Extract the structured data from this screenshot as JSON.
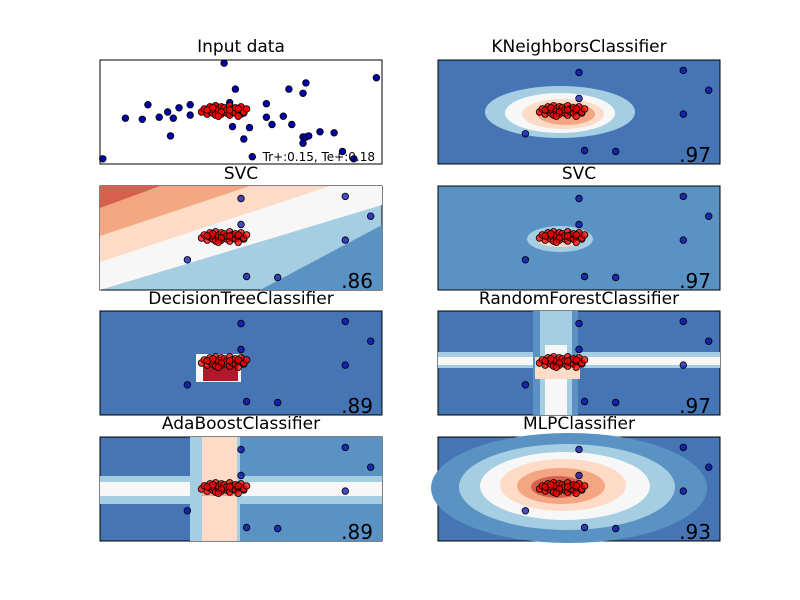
{
  "chart_data": [
    {
      "type": "scatter",
      "title": "Input data",
      "annotation": "Tr+:0.15, Te+:0.18",
      "xlim": [
        0,
        10
      ],
      "ylim": [
        0,
        10
      ],
      "grid": false,
      "series": [
        {
          "color": "#0000aa",
          "points": [
            [
              0.1,
              0.5
            ],
            [
              0.9,
              4.4
            ],
            [
              1.5,
              4.3
            ],
            [
              1.7,
              5.7
            ],
            [
              2.1,
              4.5
            ],
            [
              2.4,
              5.0
            ],
            [
              2.5,
              2.7
            ],
            [
              2.6,
              4.4
            ],
            [
              2.8,
              5.4
            ],
            [
              3.2,
              5.7
            ],
            [
              3.2,
              4.7
            ],
            [
              4.1,
              5.6
            ],
            [
              4.5,
              5.4
            ],
            [
              4.6,
              5.9
            ],
            [
              4.4,
              9.7
            ],
            [
              4.8,
              7.2
            ],
            [
              5.0,
              4.8
            ],
            [
              4.7,
              3.6
            ],
            [
              5.1,
              2.4
            ],
            [
              5.3,
              3.5
            ],
            [
              5.4,
              0.7
            ],
            [
              5.9,
              5.8
            ],
            [
              6.1,
              3.8
            ],
            [
              5.9,
              4.5
            ],
            [
              6.5,
              4.6
            ],
            [
              6.7,
              7.2
            ],
            [
              6.8,
              3.8
            ],
            [
              7.2,
              6.8
            ],
            [
              7.3,
              7.8
            ],
            [
              7.2,
              2.0
            ],
            [
              7.2,
              2.6
            ],
            [
              7.3,
              2.6
            ],
            [
              7.4,
              2.7
            ],
            [
              7.8,
              3.1
            ],
            [
              8.3,
              3.0
            ],
            [
              8.6,
              1.2
            ],
            [
              9.0,
              0.5
            ],
            [
              9.8,
              8.3
            ]
          ]
        },
        {
          "color": "#ff0000",
          "points": [
            [
              3.6,
              5.0
            ],
            [
              3.7,
              5.3
            ],
            [
              3.8,
              4.8
            ],
            [
              3.9,
              5.1
            ],
            [
              3.9,
              5.5
            ],
            [
              4.0,
              4.9
            ],
            [
              4.0,
              5.2
            ],
            [
              4.1,
              5.6
            ],
            [
              4.1,
              4.7
            ],
            [
              4.2,
              5.0
            ],
            [
              4.2,
              5.3
            ],
            [
              4.3,
              5.5
            ],
            [
              4.3,
              4.8
            ],
            [
              4.4,
              5.1
            ],
            [
              4.4,
              5.4
            ],
            [
              4.5,
              4.9
            ],
            [
              4.5,
              5.2
            ],
            [
              4.6,
              5.6
            ],
            [
              4.6,
              4.7
            ],
            [
              4.7,
              5.0
            ],
            [
              4.7,
              5.3
            ],
            [
              4.8,
              4.9
            ],
            [
              4.8,
              5.4
            ],
            [
              4.9,
              5.1
            ],
            [
              4.9,
              4.6
            ],
            [
              5.0,
              5.2
            ],
            [
              5.0,
              5.5
            ],
            [
              5.1,
              4.9
            ],
            [
              5.1,
              5.0
            ],
            [
              5.2,
              5.3
            ],
            [
              3.8,
              5.2
            ],
            [
              4.0,
              5.4
            ],
            [
              4.3,
              5.0
            ],
            [
              4.6,
              5.2
            ],
            [
              4.9,
              5.3
            ],
            [
              4.2,
              4.6
            ]
          ]
        }
      ]
    },
    {
      "type": "heatmap",
      "title": "KNeighborsClassifier",
      "score": ".97",
      "xlim": [
        0,
        10
      ],
      "ylim": [
        0,
        10
      ]
    },
    {
      "type": "heatmap",
      "title": "SVC",
      "score": ".86",
      "xlim": [
        0,
        10
      ],
      "ylim": [
        0,
        10
      ]
    },
    {
      "type": "heatmap",
      "title": "SVC",
      "score": ".97",
      "xlim": [
        0,
        10
      ],
      "ylim": [
        0,
        10
      ]
    },
    {
      "type": "heatmap",
      "title": "DecisionTreeClassifier",
      "score": ".89",
      "xlim": [
        0,
        10
      ],
      "ylim": [
        0,
        10
      ]
    },
    {
      "type": "heatmap",
      "title": "RandomForestClassifier",
      "score": ".97",
      "xlim": [
        0,
        10
      ],
      "ylim": [
        0,
        10
      ]
    },
    {
      "type": "heatmap",
      "title": "AdaBoostClassifier",
      "score": ".89",
      "xlim": [
        0,
        10
      ],
      "ylim": [
        0,
        10
      ]
    },
    {
      "type": "heatmap",
      "title": "MLPClassifier",
      "score": ".93",
      "xlim": [
        0,
        10
      ],
      "ylim": [
        0,
        10
      ]
    }
  ],
  "test_points": {
    "color": "#0000aa",
    "points": [
      [
        8.7,
        9.0
      ],
      [
        8.7,
        4.8
      ],
      [
        5.0,
        8.8
      ],
      [
        5.0,
        6.3
      ],
      [
        6.3,
        1.2
      ],
      [
        5.2,
        1.3
      ],
      [
        3.1,
        2.9
      ],
      [
        9.6,
        7.1
      ],
      [
        4.8,
        5.2
      ]
    ]
  },
  "colors": {
    "contour_light_blue": "#a6cee3",
    "contour_mid_blue": "#5b92c4",
    "contour_dark_blue": "#4575b4",
    "contour_white": "#f7f7f7",
    "contour_light_red": "#fddbc7",
    "contour_mid_red": "#f4a582",
    "contour_dark_red": "#d6604d",
    "axis": "#000000"
  }
}
